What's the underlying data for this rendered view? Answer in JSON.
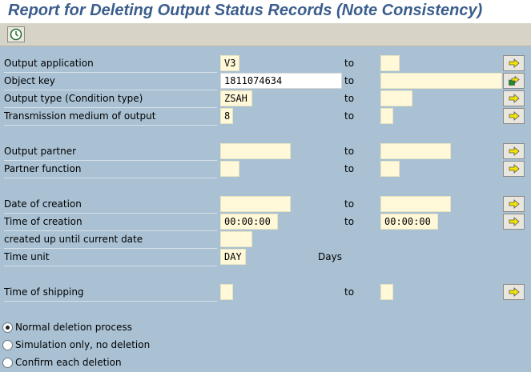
{
  "title": "Report for Deleting Output Status Records (Note Consistency)",
  "toolbar": {
    "execute_icon": "clock-execute-icon"
  },
  "fields": {
    "output_application": {
      "label": "Output application",
      "value": "V3",
      "to_value": ""
    },
    "object_key": {
      "label": "Object key",
      "value": "1811074634",
      "to_value": ""
    },
    "output_type": {
      "label": "Output type (Condition type)",
      "value": "ZSAH",
      "to_value": ""
    },
    "transmission_medium": {
      "label": "Transmission medium of output",
      "value": "8",
      "to_value": ""
    },
    "output_partner": {
      "label": "Output partner",
      "value": "",
      "to_value": ""
    },
    "partner_function": {
      "label": "Partner function",
      "value": "",
      "to_value": ""
    },
    "date_of_creation": {
      "label": "Date of creation",
      "value": "",
      "to_value": ""
    },
    "time_of_creation": {
      "label": "Time of creation",
      "value": "00:00:00",
      "to_value": "00:00:00"
    },
    "created_until": {
      "label": "created up until current date",
      "value": ""
    },
    "time_unit": {
      "label": "Time unit",
      "value": "DAY",
      "unit_text": "Days"
    },
    "time_of_shipping": {
      "label": "Time of shipping",
      "value": "",
      "to_value": ""
    }
  },
  "to_label": "to",
  "radios": [
    {
      "label": "Normal deletion process",
      "selected": true
    },
    {
      "label": "Simulation only, no deletion",
      "selected": false
    },
    {
      "label": "Confirm each deletion",
      "selected": false
    }
  ],
  "colors": {
    "background": "#a9c1d3",
    "title": "#3b5d8c",
    "field": "#fff9d9",
    "toolbar": "#d7d3c6"
  }
}
